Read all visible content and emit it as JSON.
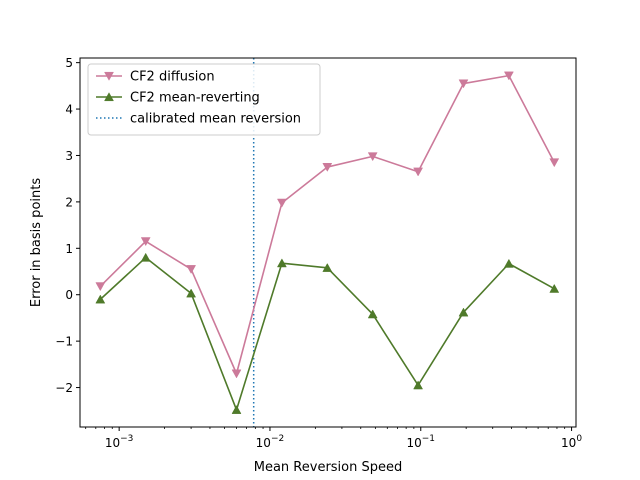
{
  "chart_data": {
    "type": "line",
    "title": "",
    "xlabel": "Mean Reversion Speed",
    "ylabel": "Error in basis points",
    "xscale": "log",
    "xlim": [
      0.00055,
      1.07
    ],
    "ylim": [
      -2.85,
      5.1
    ],
    "x_ticks": [
      {
        "value": 0.001,
        "base": "10",
        "exp": "−3"
      },
      {
        "value": 0.01,
        "base": "10",
        "exp": "−2"
      },
      {
        "value": 0.1,
        "base": "10",
        "exp": "−1"
      },
      {
        "value": 1,
        "base": "10",
        "exp": "0"
      }
    ],
    "y_ticks": [
      {
        "value": -2,
        "label": "−2"
      },
      {
        "value": -1,
        "label": "−1"
      },
      {
        "value": 0,
        "label": "0"
      },
      {
        "value": 1,
        "label": "1"
      },
      {
        "value": 2,
        "label": "2"
      },
      {
        "value": 3,
        "label": "3"
      },
      {
        "value": 4,
        "label": "4"
      },
      {
        "value": 5,
        "label": "5"
      }
    ],
    "x": [
      0.00075,
      0.0015,
      0.003,
      0.006,
      0.012,
      0.024,
      0.048,
      0.096,
      0.192,
      0.384,
      0.768
    ],
    "series": [
      {
        "name": "CF2 diffusion",
        "color": "#cc7a9a",
        "marker": "triangle-down",
        "values": [
          0.18,
          1.15,
          0.55,
          -1.7,
          1.98,
          2.75,
          2.98,
          2.65,
          4.55,
          4.72,
          2.85
        ]
      },
      {
        "name": "CF2 mean-reverting",
        "color": "#4f7a2a",
        "marker": "triangle-up",
        "values": [
          -0.1,
          0.8,
          0.03,
          -2.48,
          0.68,
          0.58,
          -0.42,
          -1.95,
          -0.38,
          0.67,
          0.13
        ]
      }
    ],
    "vline": {
      "name": "calibrated mean reversion",
      "x": 0.0078,
      "color": "#1f77b4",
      "style": "dotted"
    },
    "legend_position": "top-left",
    "grid": false
  }
}
